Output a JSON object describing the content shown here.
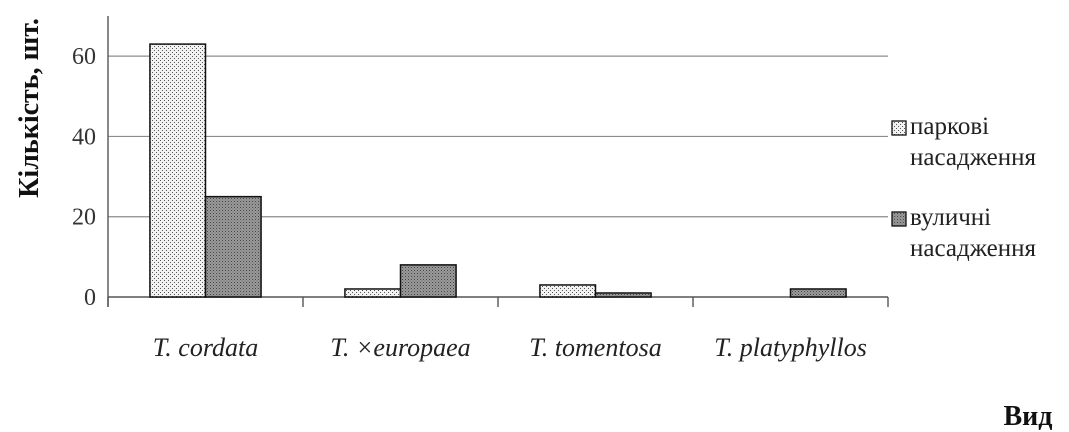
{
  "chart_data": {
    "type": "bar",
    "xlabel": "Вид",
    "ylabel": "Кількість, шт.",
    "categories": [
      "T. cordata",
      "T. ×europaea",
      "T. tomentosa",
      "T. platyphyllos"
    ],
    "series": [
      {
        "name": "паркові насадження",
        "name_lines": [
          "паркові",
          "насадження"
        ],
        "values": [
          63,
          2,
          3,
          0
        ],
        "color": "#dcdcdc",
        "pattern": "dots"
      },
      {
        "name": "вуличні насадження",
        "name_lines": [
          "вуличні",
          "насадження"
        ],
        "values": [
          25,
          8,
          1,
          2
        ],
        "color": "#8c8c8c",
        "pattern": "crosshatch"
      }
    ],
    "ylim": [
      0,
      70
    ],
    "yticks": [
      0,
      20,
      40,
      60
    ],
    "grid": true,
    "legend_position": "right"
  }
}
